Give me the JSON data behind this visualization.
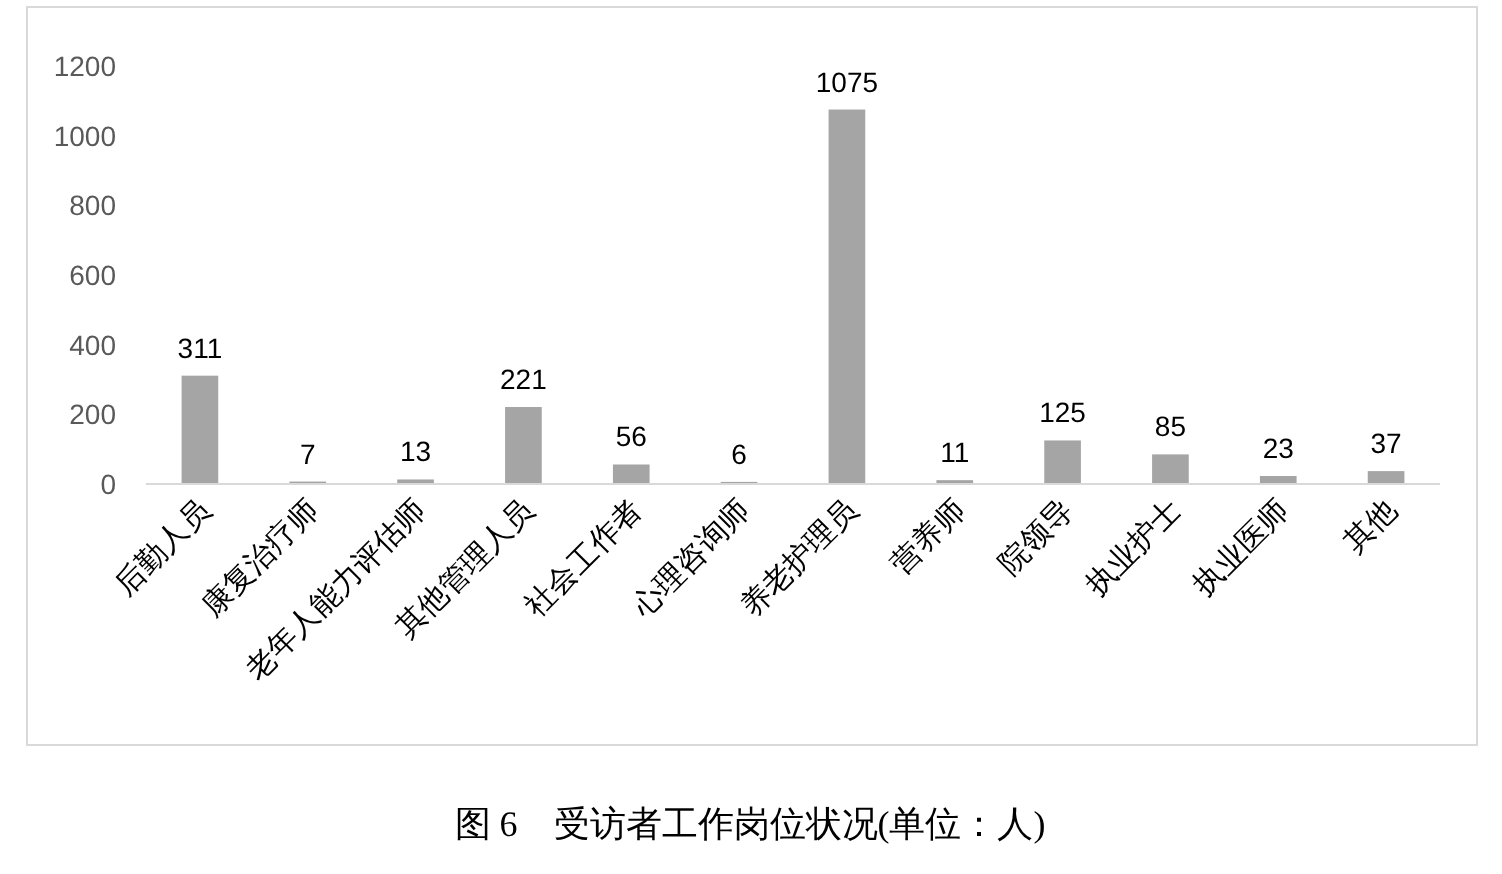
{
  "chart_data": {
    "type": "bar",
    "categories": [
      "后勤人员",
      "康复治疗师",
      "老年人能力评估师",
      "其他管理人员",
      "社会工作者",
      "心理咨询师",
      "养老护理员",
      "营养师",
      "院领导",
      "执业护士",
      "执业医师",
      "其他"
    ],
    "values": [
      311,
      7,
      13,
      221,
      56,
      6,
      1075,
      11,
      125,
      85,
      23,
      37
    ],
    "color": "#a5a5a5",
    "ylim": [
      0,
      1200
    ],
    "yticks": [
      0,
      200,
      400,
      600,
      800,
      1000,
      1200
    ],
    "grid": false,
    "data_labels": true,
    "annotations": [
      "图 6　受访者工作岗位状况(单位：人)"
    ]
  }
}
